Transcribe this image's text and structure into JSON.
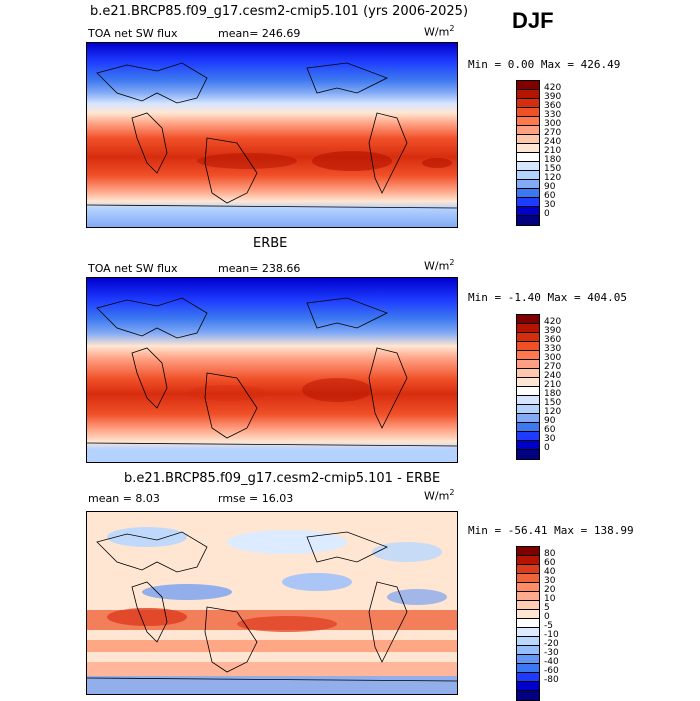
{
  "header": {
    "main_title": "b.e21.BRCP85.f09_g17.cesm2-cmip5.101 (yrs 2006-2025)",
    "season": "DJF"
  },
  "colors": {
    "full_scale": [
      "#000080",
      "#0000cd",
      "#1e3cff",
      "#3c78f0",
      "#82aaf5",
      "#b4d2ff",
      "#d7e6ff",
      "#ffffff",
      "#ffe6d2",
      "#ffc8aa",
      "#ffa082",
      "#ff7850",
      "#f05028",
      "#d72d0f",
      "#b41400",
      "#800000"
    ],
    "diff_scale": [
      "#000080",
      "#0000cd",
      "#1e3cff",
      "#3c78f0",
      "#6496f5",
      "#96beff",
      "#b9d7ff",
      "#dcebff",
      "#ffffff",
      "#ffe6d2",
      "#ffcdb4",
      "#ffaa8c",
      "#ff8c64",
      "#f0643c",
      "#dc3c1e",
      "#b41400",
      "#800000"
    ]
  },
  "panels": [
    {
      "id": "model",
      "heading": "",
      "variable": "TOA net SW flux",
      "stat_text": "mean= 246.69",
      "units_base": "W/m",
      "units_exp": "2",
      "minmax": "Min =    0.00 Max = 426.49",
      "scale": "full_scale",
      "ticks": [
        "420",
        "390",
        "360",
        "330",
        "300",
        "270",
        "240",
        "210",
        "180",
        "150",
        "120",
        "90",
        "60",
        "30",
        "0"
      ]
    },
    {
      "id": "obs",
      "heading": "ERBE",
      "variable": "TOA net SW flux",
      "stat_text": "mean= 238.66",
      "units_base": "W/m",
      "units_exp": "2",
      "minmax": "Min =  -1.40 Max = 404.05",
      "scale": "full_scale",
      "ticks": [
        "420",
        "390",
        "360",
        "330",
        "300",
        "270",
        "240",
        "210",
        "180",
        "150",
        "120",
        "90",
        "60",
        "30",
        "0"
      ]
    },
    {
      "id": "diff",
      "heading": "b.e21.BRCP85.f09_g17.cesm2-cmip5.101 - ERBE",
      "variable": "",
      "stat_text": "mean =    8.03",
      "rmse_text": "rmse =   16.03",
      "units_base": "W/m",
      "units_exp": "2",
      "minmax": "Min = -56.41 Max = 138.99",
      "scale": "diff_scale",
      "ticks": [
        "80",
        "60",
        "40",
        "30",
        "20",
        "10",
        "5",
        "0",
        "-5",
        "-10",
        "-20",
        "-30",
        "-40",
        "-60",
        "-80"
      ]
    }
  ]
}
